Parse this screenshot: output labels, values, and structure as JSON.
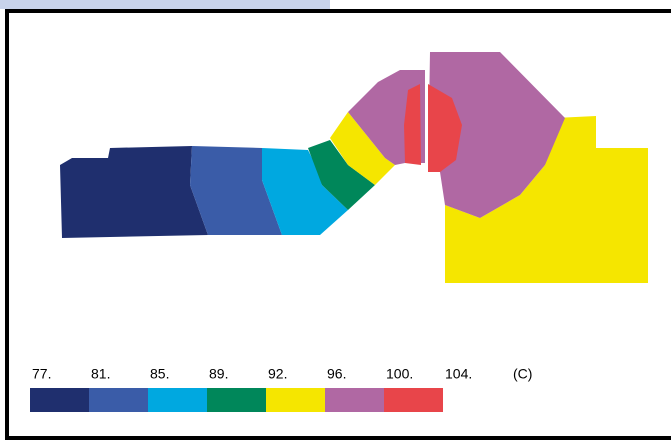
{
  "legend": {
    "labels": [
      "77.",
      "81.",
      "85.",
      "89.",
      "92.",
      "96.",
      "100.",
      "104."
    ],
    "unit": "(C)",
    "colors": [
      "#1f2f6e",
      "#3a5ca8",
      "#00a8e0",
      "#00875a",
      "#f5e600",
      "#b068a3",
      "#e8454a"
    ]
  }
}
